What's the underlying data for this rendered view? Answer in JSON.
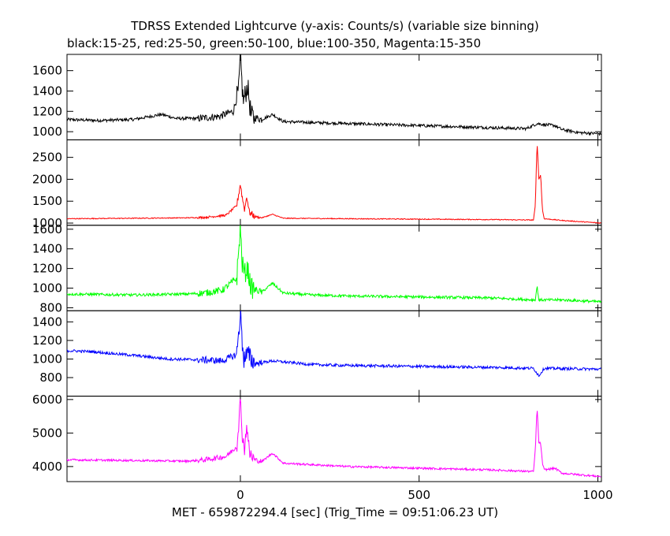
{
  "chart_data": {
    "type": "line",
    "title": "TDRSS Extended Lightcurve (y-axis: Counts/s) (variable size binning)",
    "subtitle": "black:15-25, red:25-50, green:50-100, blue:100-350, Magenta:15-350",
    "xlabel": "MET - 659872294.4 [sec] (Trig_Time = 09:51:06.23 UT)",
    "ylabel": "",
    "grid": false,
    "legend": "none",
    "xlim": [
      -485,
      1010
    ],
    "x_ticks": [
      0,
      500,
      1000
    ],
    "x_tick_labels": [
      "0",
      "500",
      "1000"
    ],
    "panels": [
      {
        "band": "black:15-25",
        "color": "#000000",
        "ylim": [
          920,
          1760
        ],
        "y_ticks": [
          1000,
          1200,
          1400,
          1600
        ],
        "y_tick_labels": [
          "1000",
          "1200",
          "1400",
          "1600"
        ],
        "x": [
          -485,
          -400,
          -300,
          -220,
          -180,
          -120,
          -60,
          -20,
          -5,
          0,
          3,
          8,
          15,
          20,
          30,
          60,
          90,
          120,
          200,
          300,
          400,
          500,
          600,
          700,
          800,
          830,
          850,
          880,
          900,
          950,
          1010
        ],
        "y": [
          1120,
          1110,
          1120,
          1170,
          1130,
          1130,
          1150,
          1200,
          1400,
          1720,
          1550,
          1300,
          1380,
          1460,
          1150,
          1120,
          1170,
          1100,
          1090,
          1080,
          1070,
          1060,
          1050,
          1040,
          1030,
          1080,
          1070,
          1060,
          1020,
          990,
          980
        ],
        "noise": 15
      },
      {
        "band": "red:25-50",
        "color": "#ff0000",
        "ylim": [
          950,
          2900
        ],
        "y_ticks": [
          1000,
          1500,
          2000,
          2500
        ],
        "y_tick_labels": [
          "1000",
          "1500",
          "2000",
          "2500"
        ],
        "x": [
          -485,
          -300,
          -150,
          -100,
          -40,
          -10,
          0,
          5,
          12,
          18,
          25,
          40,
          60,
          90,
          120,
          300,
          500,
          700,
          820,
          825,
          830,
          835,
          840,
          845,
          850,
          900,
          1010
        ],
        "y": [
          1100,
          1110,
          1120,
          1130,
          1180,
          1400,
          1900,
          1600,
          1300,
          1620,
          1250,
          1150,
          1120,
          1200,
          1110,
          1100,
          1090,
          1080,
          1070,
          1400,
          2850,
          2000,
          2100,
          1300,
          1100,
          1060,
          1000
        ],
        "noise": 10
      },
      {
        "band": "green:50-100",
        "color": "#00ff00",
        "ylim": [
          770,
          1640
        ],
        "y_ticks": [
          800,
          1000,
          1200,
          1400,
          1600
        ],
        "y_tick_labels": [
          "800",
          "1000",
          "1200",
          "1400",
          "1600"
        ],
        "x": [
          -485,
          -300,
          -150,
          -100,
          -50,
          -10,
          0,
          5,
          12,
          20,
          30,
          60,
          90,
          120,
          200,
          300,
          500,
          700,
          825,
          830,
          835,
          900,
          1010
        ],
        "y": [
          940,
          930,
          940,
          950,
          980,
          1100,
          1620,
          1250,
          1150,
          1200,
          1000,
          960,
          1050,
          950,
          930,
          920,
          910,
          900,
          880,
          1020,
          880,
          880,
          860
        ],
        "noise": 14
      },
      {
        "band": "blue:100-350",
        "color": "#0000ff",
        "ylim": [
          600,
          1520
        ],
        "y_ticks": [
          800,
          1000,
          1200,
          1400
        ],
        "y_tick_labels": [
          "800",
          "1000",
          "1200",
          "1400"
        ],
        "x": [
          -485,
          -420,
          -300,
          -200,
          -100,
          -50,
          -10,
          0,
          5,
          10,
          20,
          40,
          90,
          200,
          300,
          500,
          700,
          820,
          835,
          850,
          1010
        ],
        "y": [
          1090,
          1080,
          1040,
          1000,
          990,
          980,
          1050,
          1500,
          1200,
          1000,
          1050,
          950,
          980,
          940,
          930,
          920,
          910,
          900,
          820,
          900,
          890
        ],
        "noise": 15
      },
      {
        "band": "Magenta:15-350",
        "color": "#ff00ff",
        "ylim": [
          3550,
          6100
        ],
        "y_ticks": [
          4000,
          5000,
          6000
        ],
        "y_tick_labels": [
          "4000",
          "5000",
          "6000"
        ],
        "x": [
          -485,
          -300,
          -150,
          -100,
          -40,
          -10,
          0,
          5,
          12,
          18,
          25,
          40,
          60,
          90,
          120,
          300,
          500,
          700,
          820,
          825,
          830,
          835,
          840,
          845,
          850,
          880,
          900,
          1010
        ],
        "y": [
          4200,
          4180,
          4160,
          4200,
          4300,
          4600,
          5950,
          5000,
          4500,
          5300,
          4400,
          4200,
          4150,
          4400,
          4100,
          4000,
          3950,
          3900,
          3850,
          4500,
          5750,
          4700,
          4700,
          4100,
          3900,
          3950,
          3800,
          3700
        ],
        "noise": 30
      }
    ]
  }
}
